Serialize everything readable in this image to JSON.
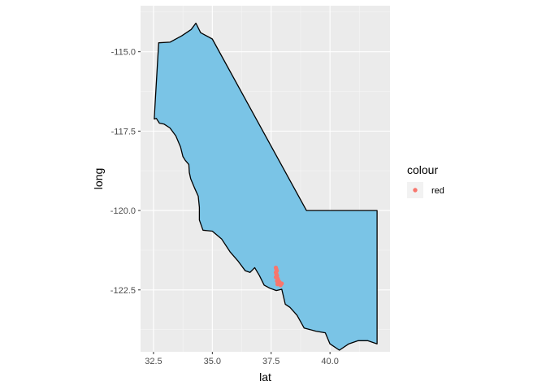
{
  "chart_data": {
    "type": "scatter",
    "xlabel": "lat",
    "ylabel": "long",
    "xlim": [
      31.95,
      42.55
    ],
    "ylim": [
      -124.45,
      -113.55
    ],
    "x_ticks": [
      {
        "value": 32.5,
        "label": "32.5"
      },
      {
        "value": 35.0,
        "label": "35.0"
      },
      {
        "value": 37.5,
        "label": "37.5"
      },
      {
        "value": 40.0,
        "label": "40.0"
      }
    ],
    "y_ticks": [
      {
        "value": -115.0,
        "label": "-115.0"
      },
      {
        "value": -117.5,
        "label": "-117.5"
      },
      {
        "value": -120.0,
        "label": "-120.0"
      },
      {
        "value": -122.5,
        "label": "-122.5"
      }
    ],
    "grid": true,
    "region": {
      "fill": "#7AC4E6",
      "stroke": "#000000",
      "outline": [
        [
          32.53,
          -117.12
        ],
        [
          32.62,
          -117.1
        ],
        [
          32.75,
          -117.25
        ],
        [
          32.95,
          -117.28
        ],
        [
          33.2,
          -117.4
        ],
        [
          33.45,
          -117.65
        ],
        [
          33.65,
          -118.0
        ],
        [
          33.75,
          -118.3
        ],
        [
          33.85,
          -118.42
        ],
        [
          34.0,
          -118.55
        ],
        [
          34.02,
          -118.8
        ],
        [
          34.08,
          -119.0
        ],
        [
          34.25,
          -119.3
        ],
        [
          34.4,
          -119.55
        ],
        [
          34.45,
          -119.9
        ],
        [
          34.45,
          -120.3
        ],
        [
          34.6,
          -120.62
        ],
        [
          35.0,
          -120.65
        ],
        [
          35.4,
          -120.9
        ],
        [
          35.75,
          -121.3
        ],
        [
          36.1,
          -121.6
        ],
        [
          36.4,
          -121.9
        ],
        [
          36.6,
          -121.95
        ],
        [
          36.8,
          -121.8
        ],
        [
          37.0,
          -122.05
        ],
        [
          37.2,
          -122.35
        ],
        [
          37.45,
          -122.45
        ],
        [
          37.72,
          -122.52
        ],
        [
          37.95,
          -122.48
        ],
        [
          38.1,
          -122.95
        ],
        [
          38.3,
          -123.05
        ],
        [
          38.6,
          -123.3
        ],
        [
          38.9,
          -123.7
        ],
        [
          39.4,
          -123.8
        ],
        [
          39.8,
          -123.85
        ],
        [
          40.0,
          -124.2
        ],
        [
          40.4,
          -124.4
        ],
        [
          40.8,
          -124.2
        ],
        [
          41.2,
          -124.1
        ],
        [
          41.6,
          -124.1
        ],
        [
          42.0,
          -124.2
        ],
        [
          42.0,
          -120.0
        ],
        [
          39.0,
          -120.0
        ],
        [
          35.0,
          -114.6
        ],
        [
          34.5,
          -114.4
        ],
        [
          34.3,
          -114.1
        ],
        [
          34.1,
          -114.3
        ],
        [
          33.7,
          -114.5
        ],
        [
          33.2,
          -114.7
        ],
        [
          32.72,
          -114.72
        ],
        [
          32.53,
          -117.12
        ]
      ]
    },
    "series": [
      {
        "color": "#F8766D",
        "points": [
          [
            37.7,
            -121.8
          ],
          [
            37.72,
            -121.85
          ],
          [
            37.74,
            -121.9
          ],
          [
            37.7,
            -121.95
          ],
          [
            37.72,
            -122.0
          ],
          [
            37.75,
            -122.05
          ],
          [
            37.7,
            -122.1
          ],
          [
            37.78,
            -122.15
          ],
          [
            37.8,
            -122.2
          ],
          [
            37.75,
            -122.22
          ],
          [
            37.85,
            -122.25
          ],
          [
            37.8,
            -122.28
          ],
          [
            37.88,
            -122.3
          ],
          [
            37.77,
            -122.32
          ],
          [
            37.9,
            -122.35
          ],
          [
            37.95,
            -122.3
          ]
        ]
      }
    ],
    "legend": {
      "title": "colour",
      "position": "right",
      "entries": [
        {
          "label": "red",
          "color": "#F8766D"
        }
      ]
    }
  }
}
